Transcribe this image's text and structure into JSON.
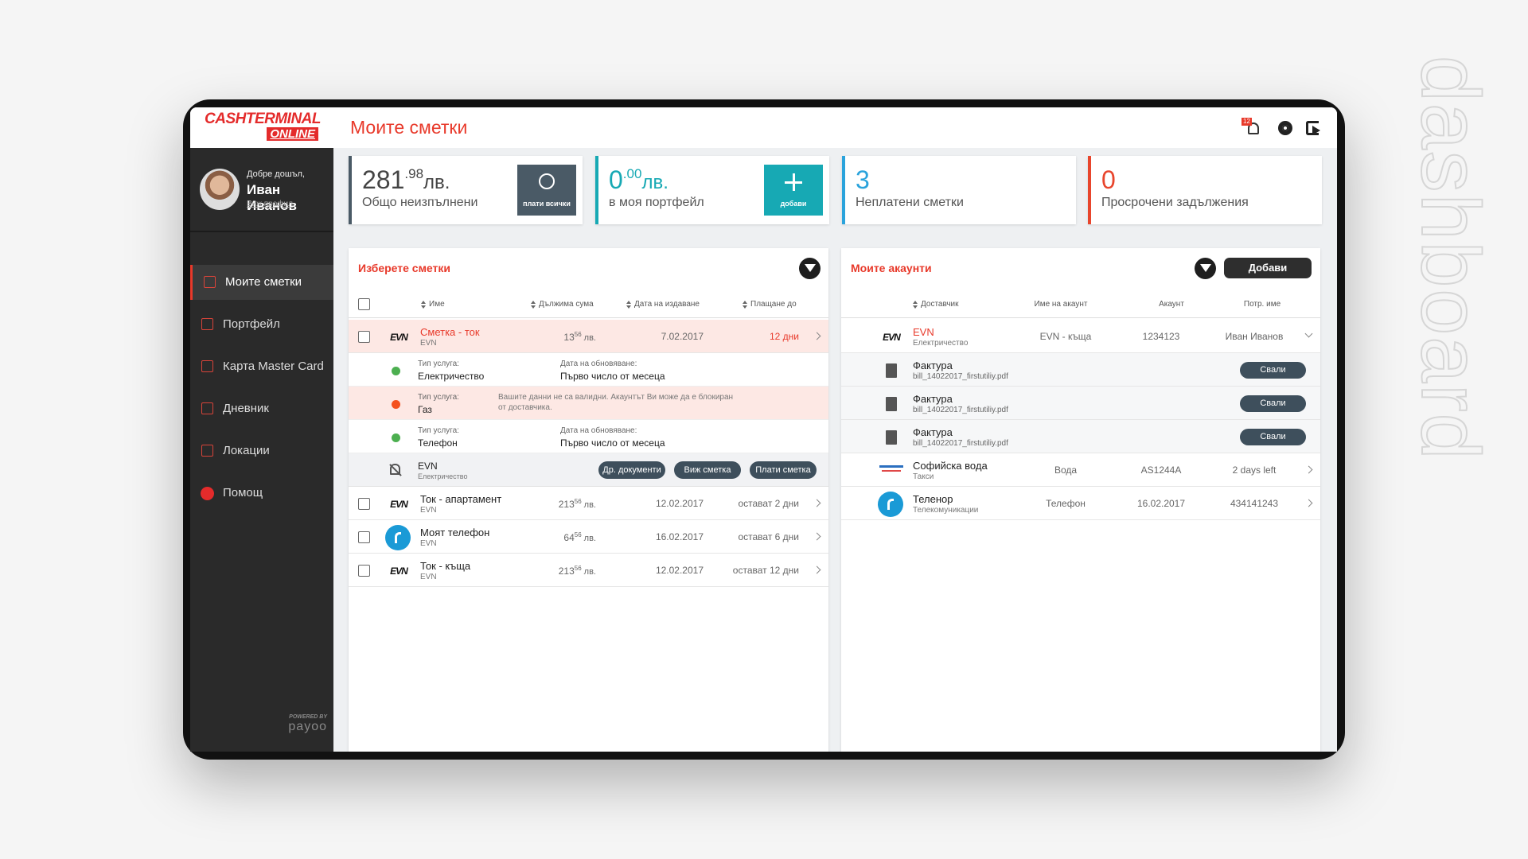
{
  "watermark": "dashboard",
  "logo": {
    "line1": "CASHTERMINAL",
    "line2": "ONLINE"
  },
  "header": {
    "title": "Моите сметки",
    "notification_count": "12"
  },
  "user": {
    "greeting": "Добре дошъл,",
    "name": "Иван Иванов",
    "link": "Виж профил"
  },
  "nav": {
    "items": [
      "Моите сметки",
      "Портфейл",
      "Карта Master Card",
      "Дневник",
      "Локации",
      "Помощ"
    ],
    "active": 0
  },
  "powered": {
    "caption": "POWERED BY",
    "brand": "payoo"
  },
  "stats": [
    {
      "value": "281",
      "cents": ".98",
      "unit": "лв.",
      "label": "Общо неизпълнени",
      "button": "плати всички",
      "color": "#4a5a66",
      "value_color": "#444"
    },
    {
      "value": "0",
      "cents": ".00",
      "unit": "лв.",
      "label": "в моя портфейл",
      "button": "добави",
      "color": "#17a9b4",
      "value_color": "#17a9b4"
    },
    {
      "value": "3",
      "label": "Неплатени сметки",
      "color": "#2aa3dc",
      "value_color": "#2aa3dc"
    },
    {
      "value": "0",
      "label": "Просрочени задължения",
      "color": "#e8452c",
      "value_color": "#e8452c"
    }
  ],
  "bills": {
    "title": "Изберете сметки",
    "columns": [
      "Име",
      "Дължима сума",
      "Дата на издаване",
      "Плащане до"
    ],
    "rows": [
      {
        "name": "Сметка - ток",
        "provider": "EVN",
        "logo": "EVN",
        "amount": "13",
        "cents": "56",
        "unit": "лв.",
        "date": "7.02.2017",
        "due": "12 дни",
        "selected": true,
        "services": [
          {
            "label": "Тип услуга:",
            "value": "Електричество",
            "update_label": "Дата на обновяване:",
            "update_value": "Първо число от месеца",
            "dot_color": "#4caf50"
          },
          {
            "label": "Тип услуга:",
            "value": "Газ",
            "warning": "Вашите данни не са валидни. Акаунтът Ви може да е блокиран от доставчика.",
            "dot_color": "#f4511e"
          },
          {
            "label": "Тип услуга:",
            "value": "Телефон",
            "update_label": "Дата на обновяване:",
            "update_value": "Първо число от месеца",
            "dot_color": "#4caf50"
          }
        ],
        "actions": {
          "provider": "EVN",
          "service": "Електричество",
          "buttons": [
            "Др. документи",
            "Виж сметка",
            "Плати сметка"
          ]
        }
      },
      {
        "name": "Ток - апартамент",
        "provider": "EVN",
        "logo": "EVN",
        "amount": "213",
        "cents": "56",
        "unit": "лв.",
        "date": "12.02.2017",
        "due": "остават 2 дни"
      },
      {
        "name": "Моят телефон",
        "provider": "EVN",
        "icon": "telenor",
        "amount": "64",
        "cents": "56",
        "unit": "лв.",
        "date": "16.02.2017",
        "due": "остават 6 дни"
      },
      {
        "name": "Ток - къща",
        "provider": "EVN",
        "logo": "EVN",
        "amount": "213",
        "cents": "56",
        "unit": "лв.",
        "date": "12.02.2017",
        "due": "остават 12 дни"
      }
    ]
  },
  "accounts": {
    "title": "Моите акаунти",
    "add_button": "Добави",
    "columns": [
      "Доставчик",
      "Име на акаунт",
      "Акаунт",
      "Потр. име"
    ],
    "rows": [
      {
        "name": "EVN",
        "service": "Електричество",
        "logo": "EVN",
        "account_name": "EVN - къща",
        "account": "1234123",
        "username": "Иван Иванов",
        "selected": true,
        "documents": [
          {
            "title": "Фактура",
            "file": "bill_14022017_firstutiliy.pdf",
            "button": "Свали"
          },
          {
            "title": "Фактура",
            "file": "bill_14022017_firstutiliy.pdf",
            "button": "Свали"
          },
          {
            "title": "Фактура",
            "file": "bill_14022017_firstutiliy.pdf",
            "button": "Свали"
          }
        ]
      },
      {
        "name": "Софийска вода",
        "service": "Такси",
        "icon": "water",
        "account_name": "Вода",
        "account": "AS1244A",
        "username": "2 days left"
      },
      {
        "name": "Теленор",
        "service": "Телекомуникации",
        "icon": "telenor",
        "account_name": "Телефон",
        "account": "16.02.2017",
        "username": "434141243"
      }
    ]
  }
}
